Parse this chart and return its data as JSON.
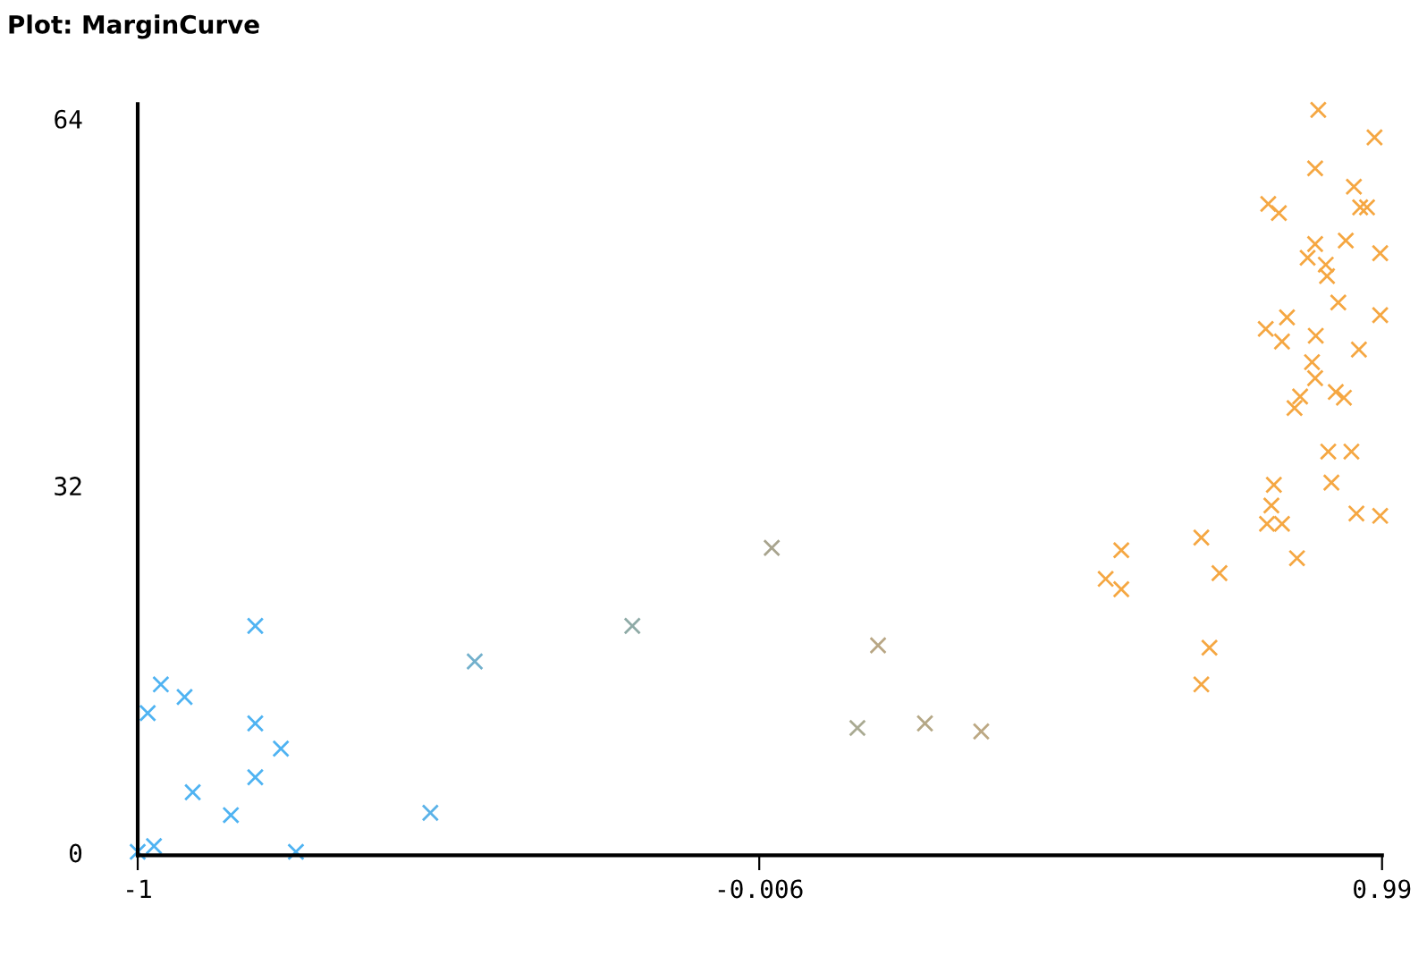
{
  "chart_data": {
    "type": "scatter",
    "title": "Plot: MarginCurve",
    "x": [
      -1.0,
      -0.974,
      -0.984,
      -0.963,
      -0.925,
      -0.812,
      -0.812,
      -0.771,
      -0.812,
      -0.912,
      -0.851,
      -0.747,
      -0.532,
      -0.461,
      -0.209,
      0.014,
      0.184,
      0.151,
      0.259,
      0.349,
      0.548,
      0.573,
      0.573,
      0.701,
      0.714,
      0.701,
      0.73,
      0.854,
      0.888,
      0.978,
      0.883,
      0.945,
      0.808,
      0.825,
      0.955,
      0.966,
      0.883,
      0.932,
      0.987,
      0.871,
      0.9,
      0.902,
      0.92,
      0.987,
      0.838,
      0.804,
      0.83,
      0.884,
      0.953,
      0.878,
      0.883,
      0.916,
      0.929,
      0.859,
      0.85,
      0.904,
      0.941,
      0.817,
      0.909,
      0.813,
      0.806,
      0.83,
      0.949,
      0.987
    ],
    "values": [
      0.3,
      0.8,
      12.4,
      14.9,
      13.8,
      20.0,
      11.5,
      9.3,
      6.8,
      5.5,
      3.5,
      0.3,
      3.7,
      16.9,
      20.0,
      26.8,
      18.3,
      11.1,
      11.5,
      10.8,
      24.1,
      26.6,
      23.2,
      14.9,
      18.1,
      27.7,
      24.6,
      25.9,
      65.0,
      62.6,
      59.9,
      58.3,
      56.8,
      56.0,
      56.5,
      56.5,
      53.3,
      53.6,
      52.5,
      52.1,
      51.5,
      50.5,
      48.2,
      47.1,
      46.9,
      45.9,
      44.8,
      45.3,
      44.1,
      43.0,
      41.6,
      40.4,
      39.9,
      40.0,
      39.0,
      35.2,
      35.2,
      32.3,
      32.5,
      30.5,
      28.9,
      28.9,
      29.8,
      29.6
    ],
    "colors": [
      "#4fb3f2",
      "#4fb3f2",
      "#4fb3f2",
      "#4fb3f2",
      "#4fb3f2",
      "#4fb3f2",
      "#4fb3f2",
      "#4fb3f2",
      "#4fb3f2",
      "#4fb3f2",
      "#4fb3f2",
      "#4fb3f2",
      "#5ab2e8",
      "#72b0cc",
      "#8eaaa6",
      "#a8a48e",
      "#b8a684",
      "#a9aa92",
      "#b5a886",
      "#bca883",
      "#f5a742",
      "#f5a742",
      "#f5a742",
      "#f5a742",
      "#f5a742",
      "#f5a742",
      "#f5a742",
      "#f5a742",
      "#f5a742",
      "#f5a742",
      "#f5a742",
      "#f5a742",
      "#f5a742",
      "#f5a742",
      "#f5a742",
      "#f5a742",
      "#f5a742",
      "#f5a742",
      "#f5a742",
      "#f5a742",
      "#f5a742",
      "#f5a742",
      "#f5a742",
      "#f5a742",
      "#f5a742",
      "#f5a742",
      "#f5a742",
      "#f5a742",
      "#f5a742",
      "#f5a742",
      "#f5a742",
      "#f5a742",
      "#f5a742",
      "#f5a742",
      "#f5a742",
      "#f5a742",
      "#f5a742",
      "#f5a742",
      "#f5a742",
      "#f5a742",
      "#f5a742",
      "#f5a742",
      "#f5a742",
      "#f5a742"
    ],
    "marker": "cross",
    "grid": false,
    "legend": false,
    "xlim": [
      -1,
      0.99
    ],
    "ylim": [
      0,
      65.5
    ],
    "xticks": [
      -1,
      -0.006,
      0.99
    ],
    "yticks": [
      0,
      32,
      64
    ]
  }
}
